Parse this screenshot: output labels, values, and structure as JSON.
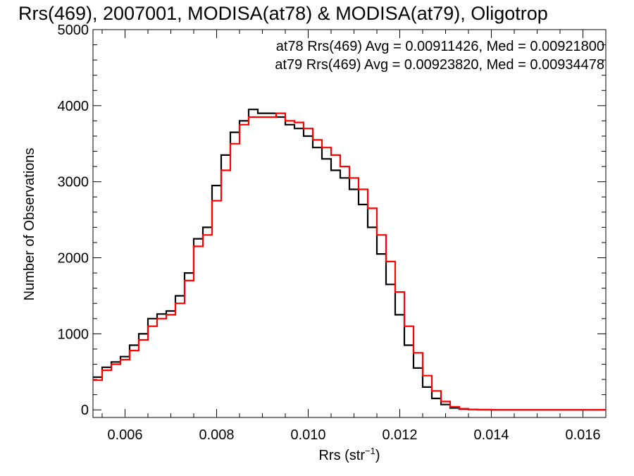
{
  "chart_data": {
    "type": "line",
    "title": "Rrs(469), 2007001, MODISA(at78) & MODISA(at79), Oligotrop",
    "xlabel": "Rrs (str",
    "xlabel_superscript": "−1",
    "xlabel_close": ")",
    "ylabel": "Number of Observations",
    "xlim": [
      0.0053,
      0.0165
    ],
    "ylim": [
      -100,
      5000
    ],
    "xticks": [
      0.006,
      0.008,
      0.01,
      0.012,
      0.014,
      0.016
    ],
    "xtick_labels": [
      "0.006",
      "0.008",
      "0.010",
      "0.012",
      "0.014",
      "0.016"
    ],
    "yticks": [
      0,
      1000,
      2000,
      3000,
      4000,
      5000
    ],
    "ytick_labels": [
      "0",
      "1000",
      "2000",
      "3000",
      "4000",
      "5000"
    ],
    "grid": false,
    "legend_position": "top-right",
    "step": true,
    "series": [
      {
        "color": "#000000",
        "annotation": "at78 Rrs(469) Avg = 0.00911426, Med = 0.00921800",
        "x": [
          0.0053,
          0.0055,
          0.0057,
          0.0059,
          0.0061,
          0.0063,
          0.0065,
          0.0067,
          0.0069,
          0.0071,
          0.0073,
          0.0075,
          0.0077,
          0.0079,
          0.0081,
          0.0083,
          0.0085,
          0.0087,
          0.0089,
          0.0091,
          0.0093,
          0.0095,
          0.0097,
          0.0099,
          0.0101,
          0.0103,
          0.0105,
          0.0107,
          0.0109,
          0.0111,
          0.0113,
          0.0115,
          0.0117,
          0.0119,
          0.0121,
          0.0123,
          0.0125,
          0.0127,
          0.0129,
          0.0131,
          0.0133,
          0.0135,
          0.0137,
          0.014,
          0.015,
          0.0165
        ],
        "y": [
          430,
          560,
          630,
          700,
          850,
          1000,
          1200,
          1260,
          1300,
          1500,
          1800,
          2250,
          2400,
          2950,
          3350,
          3650,
          3800,
          3950,
          3900,
          3900,
          3850,
          3750,
          3700,
          3600,
          3450,
          3300,
          3150,
          3050,
          2900,
          2700,
          2400,
          2050,
          1650,
          1250,
          850,
          550,
          300,
          150,
          70,
          25,
          10,
          5,
          2,
          0,
          0,
          0
        ]
      },
      {
        "color": "#ff0000",
        "annotation": "at79 Rrs(469) Avg = 0.00923820, Med = 0.00934478",
        "x": [
          0.0053,
          0.0055,
          0.0057,
          0.0059,
          0.0061,
          0.0063,
          0.0065,
          0.0067,
          0.0069,
          0.0071,
          0.0073,
          0.0075,
          0.0077,
          0.0079,
          0.0081,
          0.0083,
          0.0085,
          0.0087,
          0.0089,
          0.0091,
          0.0093,
          0.0095,
          0.0097,
          0.0099,
          0.0101,
          0.0103,
          0.0105,
          0.0107,
          0.0109,
          0.0111,
          0.0113,
          0.0115,
          0.0117,
          0.0119,
          0.0121,
          0.0123,
          0.0125,
          0.0127,
          0.0129,
          0.0131,
          0.0133,
          0.0135,
          0.0137,
          0.014,
          0.015,
          0.0165
        ],
        "y": [
          390,
          520,
          600,
          660,
          780,
          920,
          1100,
          1200,
          1250,
          1400,
          1700,
          2150,
          2300,
          2750,
          3150,
          3500,
          3750,
          3850,
          3850,
          3850,
          3900,
          3800,
          3780,
          3700,
          3550,
          3450,
          3350,
          3200,
          3050,
          2900,
          2650,
          2300,
          1950,
          1550,
          1100,
          750,
          450,
          250,
          110,
          40,
          15,
          5,
          2,
          0,
          0,
          0
        ]
      }
    ]
  }
}
